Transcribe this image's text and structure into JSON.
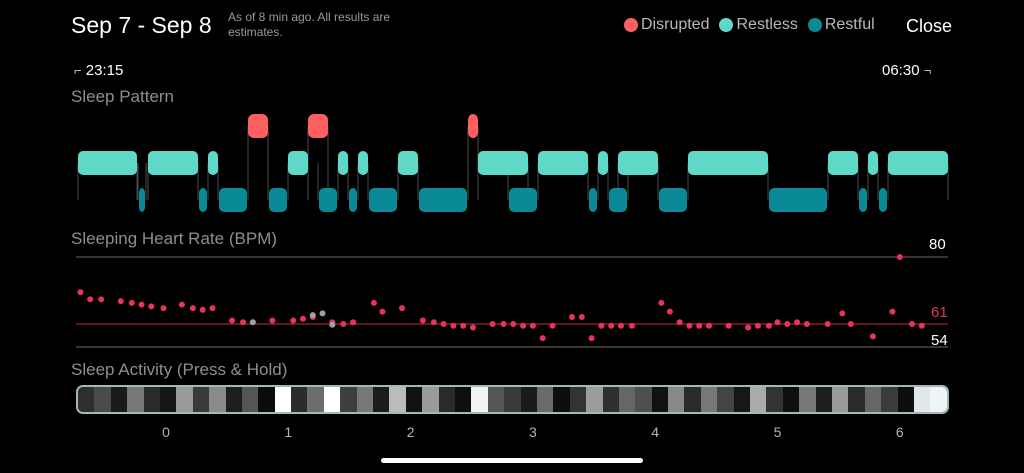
{
  "header": {
    "title": "Sep 7 - Sep 8",
    "subtitle": "As of 8 min ago. All results are estimates.",
    "close_label": "Close"
  },
  "legend": [
    {
      "label": "Disrupted",
      "color": "#ff5f5f"
    },
    {
      "label": "Restless",
      "color": "#5fd8c8"
    },
    {
      "label": "Restful",
      "color": "#0a8a97"
    }
  ],
  "time_range": {
    "start": "23:15",
    "end": "06:30"
  },
  "sections": {
    "pattern_label": "Sleep Pattern",
    "heart_label": "Sleeping Heart Rate (BPM)",
    "activity_label": "Sleep Activity (Press & Hold)"
  },
  "heart_rate": {
    "max_label": "80",
    "avg_label": "61",
    "min_label": "54",
    "max": 80,
    "avg": 61,
    "min": 54,
    "points": [
      [
        -0.7,
        70
      ],
      [
        -0.62,
        68
      ],
      [
        -0.53,
        68
      ],
      [
        -0.37,
        67.5
      ],
      [
        -0.28,
        67
      ],
      [
        -0.2,
        66.5
      ],
      [
        -0.12,
        66
      ],
      [
        -0.02,
        65.5
      ],
      [
        0.13,
        66.5
      ],
      [
        0.22,
        65.5
      ],
      [
        0.3,
        65
      ],
      [
        0.38,
        65.5
      ],
      [
        0.54,
        62
      ],
      [
        0.63,
        61.5
      ],
      [
        0.71,
        61.5
      ],
      [
        0.87,
        62
      ],
      [
        1.04,
        62
      ],
      [
        1.12,
        62.5
      ],
      [
        1.2,
        63
      ],
      [
        1.36,
        61.5
      ],
      [
        1.45,
        61
      ],
      [
        1.53,
        61.5
      ],
      [
        1.7,
        67
      ],
      [
        1.77,
        64.5
      ],
      [
        1.93,
        65.5
      ],
      [
        2.1,
        62
      ],
      [
        2.19,
        61.5
      ],
      [
        2.27,
        61
      ],
      [
        2.35,
        60.5
      ],
      [
        2.43,
        60.5
      ],
      [
        2.51,
        60
      ],
      [
        2.67,
        61
      ],
      [
        2.76,
        61
      ],
      [
        2.84,
        61
      ],
      [
        2.92,
        60.5
      ],
      [
        3.0,
        60.5
      ],
      [
        3.08,
        57
      ],
      [
        3.16,
        60.5
      ],
      [
        3.32,
        63
      ],
      [
        3.4,
        63
      ],
      [
        3.48,
        57
      ],
      [
        3.56,
        60.5
      ],
      [
        3.64,
        60.5
      ],
      [
        3.72,
        60.5
      ],
      [
        3.81,
        60.5
      ],
      [
        4.05,
        67
      ],
      [
        4.12,
        64.5
      ],
      [
        4.2,
        61.5
      ],
      [
        4.28,
        60.5
      ],
      [
        4.36,
        60.5
      ],
      [
        4.44,
        60.5
      ],
      [
        4.6,
        60.5
      ],
      [
        4.76,
        60
      ],
      [
        4.84,
        60.5
      ],
      [
        4.93,
        60.5
      ],
      [
        5.0,
        61.5
      ],
      [
        5.08,
        61
      ],
      [
        5.16,
        61.5
      ],
      [
        5.24,
        61
      ],
      [
        5.41,
        61
      ],
      [
        5.53,
        64
      ],
      [
        5.6,
        61
      ],
      [
        5.78,
        57.5
      ],
      [
        5.94,
        64.5
      ],
      [
        6.0,
        80
      ],
      [
        6.1,
        61
      ],
      [
        6.18,
        60.5
      ]
    ],
    "gray_points": [
      [
        0.71,
        61.5
      ],
      [
        1.2,
        63.5
      ],
      [
        1.28,
        64
      ],
      [
        1.36,
        60.8
      ]
    ]
  },
  "activity_segments": [
    "#2f2f2f",
    "#4a4a4a",
    "#1a1a1a",
    "#777",
    "#2b2b2b",
    "#151515",
    "#999",
    "#3a3a3a",
    "#8a8a8a",
    "#1e1e1e",
    "#555",
    "#0c0c0c",
    "#ffffff",
    "#2c2c2c",
    "#6d6d6d",
    "#ffffff",
    "#3f3f3f",
    "#777",
    "#1c1c1c",
    "#bbbbbb",
    "#121212",
    "#9a9a9a",
    "#2a2a2a",
    "#0f0f0f",
    "#f2f2f2",
    "#555",
    "#3a3a3a",
    "#1b1b1b",
    "#6a6a6a",
    "#0e0e0e",
    "#333",
    "#9c9c9c",
    "#2f2f2f",
    "#666",
    "#4f4f4f",
    "#111",
    "#888",
    "#2a2a2a",
    "#777",
    "#444",
    "#171717",
    "#aaa",
    "#333",
    "#0f0f0f",
    "#777",
    "#1f1f1f",
    "#999",
    "#2b2b2b",
    "#666",
    "#3b3b3b",
    "#0e0e0e",
    "#dfe9ec",
    "#eef5f6"
  ],
  "x_ticks": [
    "0",
    "1",
    "2",
    "3",
    "4",
    "5",
    "6"
  ]
}
